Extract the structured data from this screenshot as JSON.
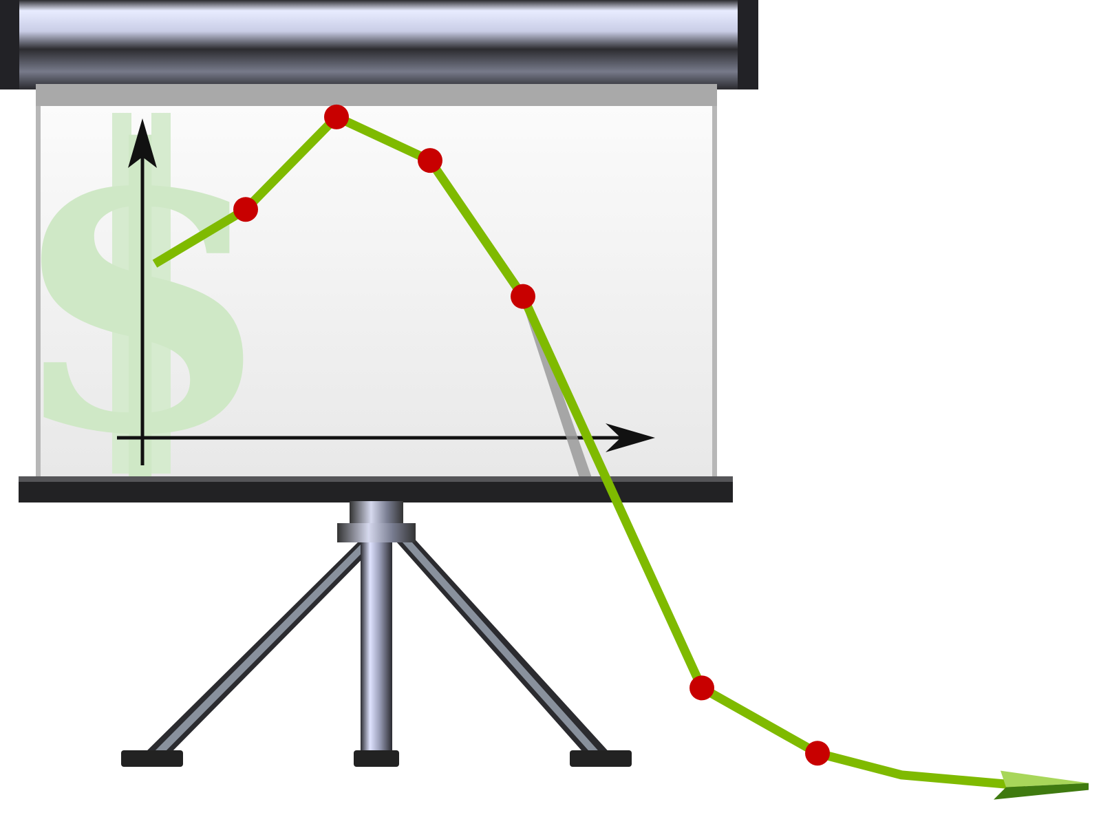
{
  "illustration": {
    "subject": "projection-screen-with-declining-chart",
    "watermark_symbol": "$"
  },
  "chart_data": {
    "type": "line",
    "trend": "rise-then-fall",
    "x": [
      0,
      1,
      2,
      3,
      4,
      5,
      6,
      7,
      8
    ],
    "values": [
      3.2,
      4.2,
      5.9,
      5.1,
      2.6,
      -4.6,
      -5.8,
      -6.2,
      -6.4
    ],
    "markers_on": [
      1,
      2,
      3,
      4,
      5,
      6
    ],
    "title": "",
    "xlabel": "",
    "ylabel": "",
    "ylim": [
      -7,
      6.5
    ],
    "grid": false
  },
  "colors": {
    "line": "#7fba00",
    "marker": "#c80000",
    "axis": "#111111",
    "watermark": "#cfe8c6",
    "arrowhead_light": "#a8d65a",
    "arrowhead_dark": "#3f7a10"
  }
}
